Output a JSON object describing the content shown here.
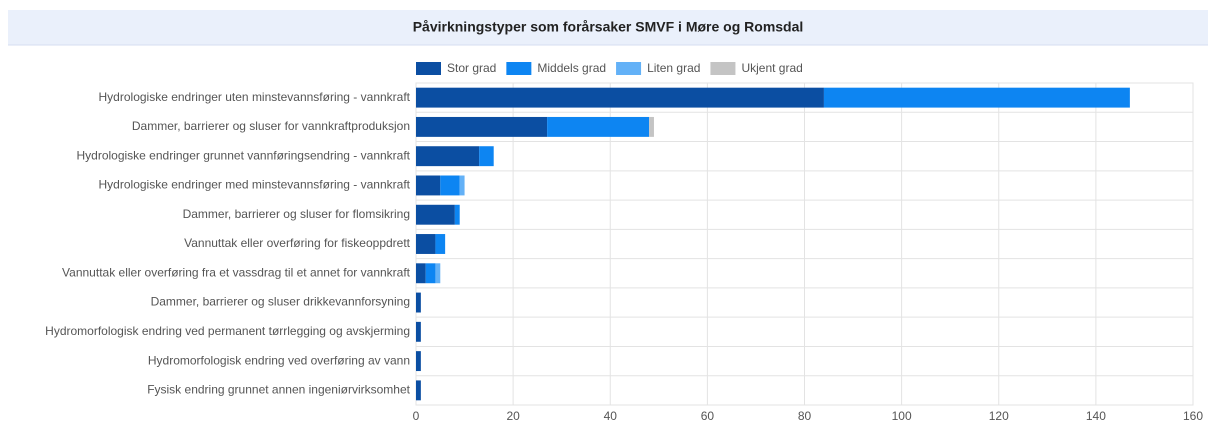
{
  "chart_data": {
    "type": "stacked-bar-horizontal",
    "title": "Påvirkningstyper som forårsaker SMVF i Møre og Romsdal",
    "categories": [
      "Hydrologiske endringer uten minstevannsføring - vannkraft",
      "Dammer, barrierer og sluser for vannkraftproduksjon",
      "Hydrologiske endringer grunnet vannføringsendring - vannkraft",
      "Hydrologiske endringer med minstevannsføring - vannkraft",
      "Dammer, barrierer og sluser for flomsikring",
      "Vannuttak eller overføring for fiskeoppdrett",
      "Vannuttak eller overføring fra et vassdrag til et annet for vannkraft",
      "Dammer, barrierer og sluser drikkevannforsyning",
      "Hydromorfologisk endring ved permanent tørrlegging og avskjerming",
      "Hydromorfologisk endring ved overføring av vann",
      "Fysisk endring grunnet annen ingeniørvirksomhet"
    ],
    "series": [
      {
        "name": "Stor grad",
        "color": "#0b4ea2",
        "values": [
          84,
          27,
          13,
          5,
          8,
          4,
          2,
          1,
          1,
          1,
          1
        ]
      },
      {
        "name": "Middels grad",
        "color": "#0d85f2",
        "values": [
          63,
          21,
          3,
          4,
          1,
          2,
          2,
          0,
          0,
          0,
          0
        ]
      },
      {
        "name": "Liten grad",
        "color": "#63b1f7",
        "values": [
          0,
          0,
          0,
          1,
          0,
          0,
          1,
          0,
          0,
          0,
          0
        ]
      },
      {
        "name": "Ukjent grad",
        "color": "#c4c4c4",
        "values": [
          0,
          1,
          0,
          0,
          0,
          0,
          0,
          0,
          0,
          0,
          0
        ]
      }
    ],
    "xlim": [
      0,
      160
    ],
    "xticks": [
      0,
      20,
      40,
      60,
      80,
      100,
      120,
      140,
      160
    ],
    "grid": true,
    "legend": "top"
  }
}
